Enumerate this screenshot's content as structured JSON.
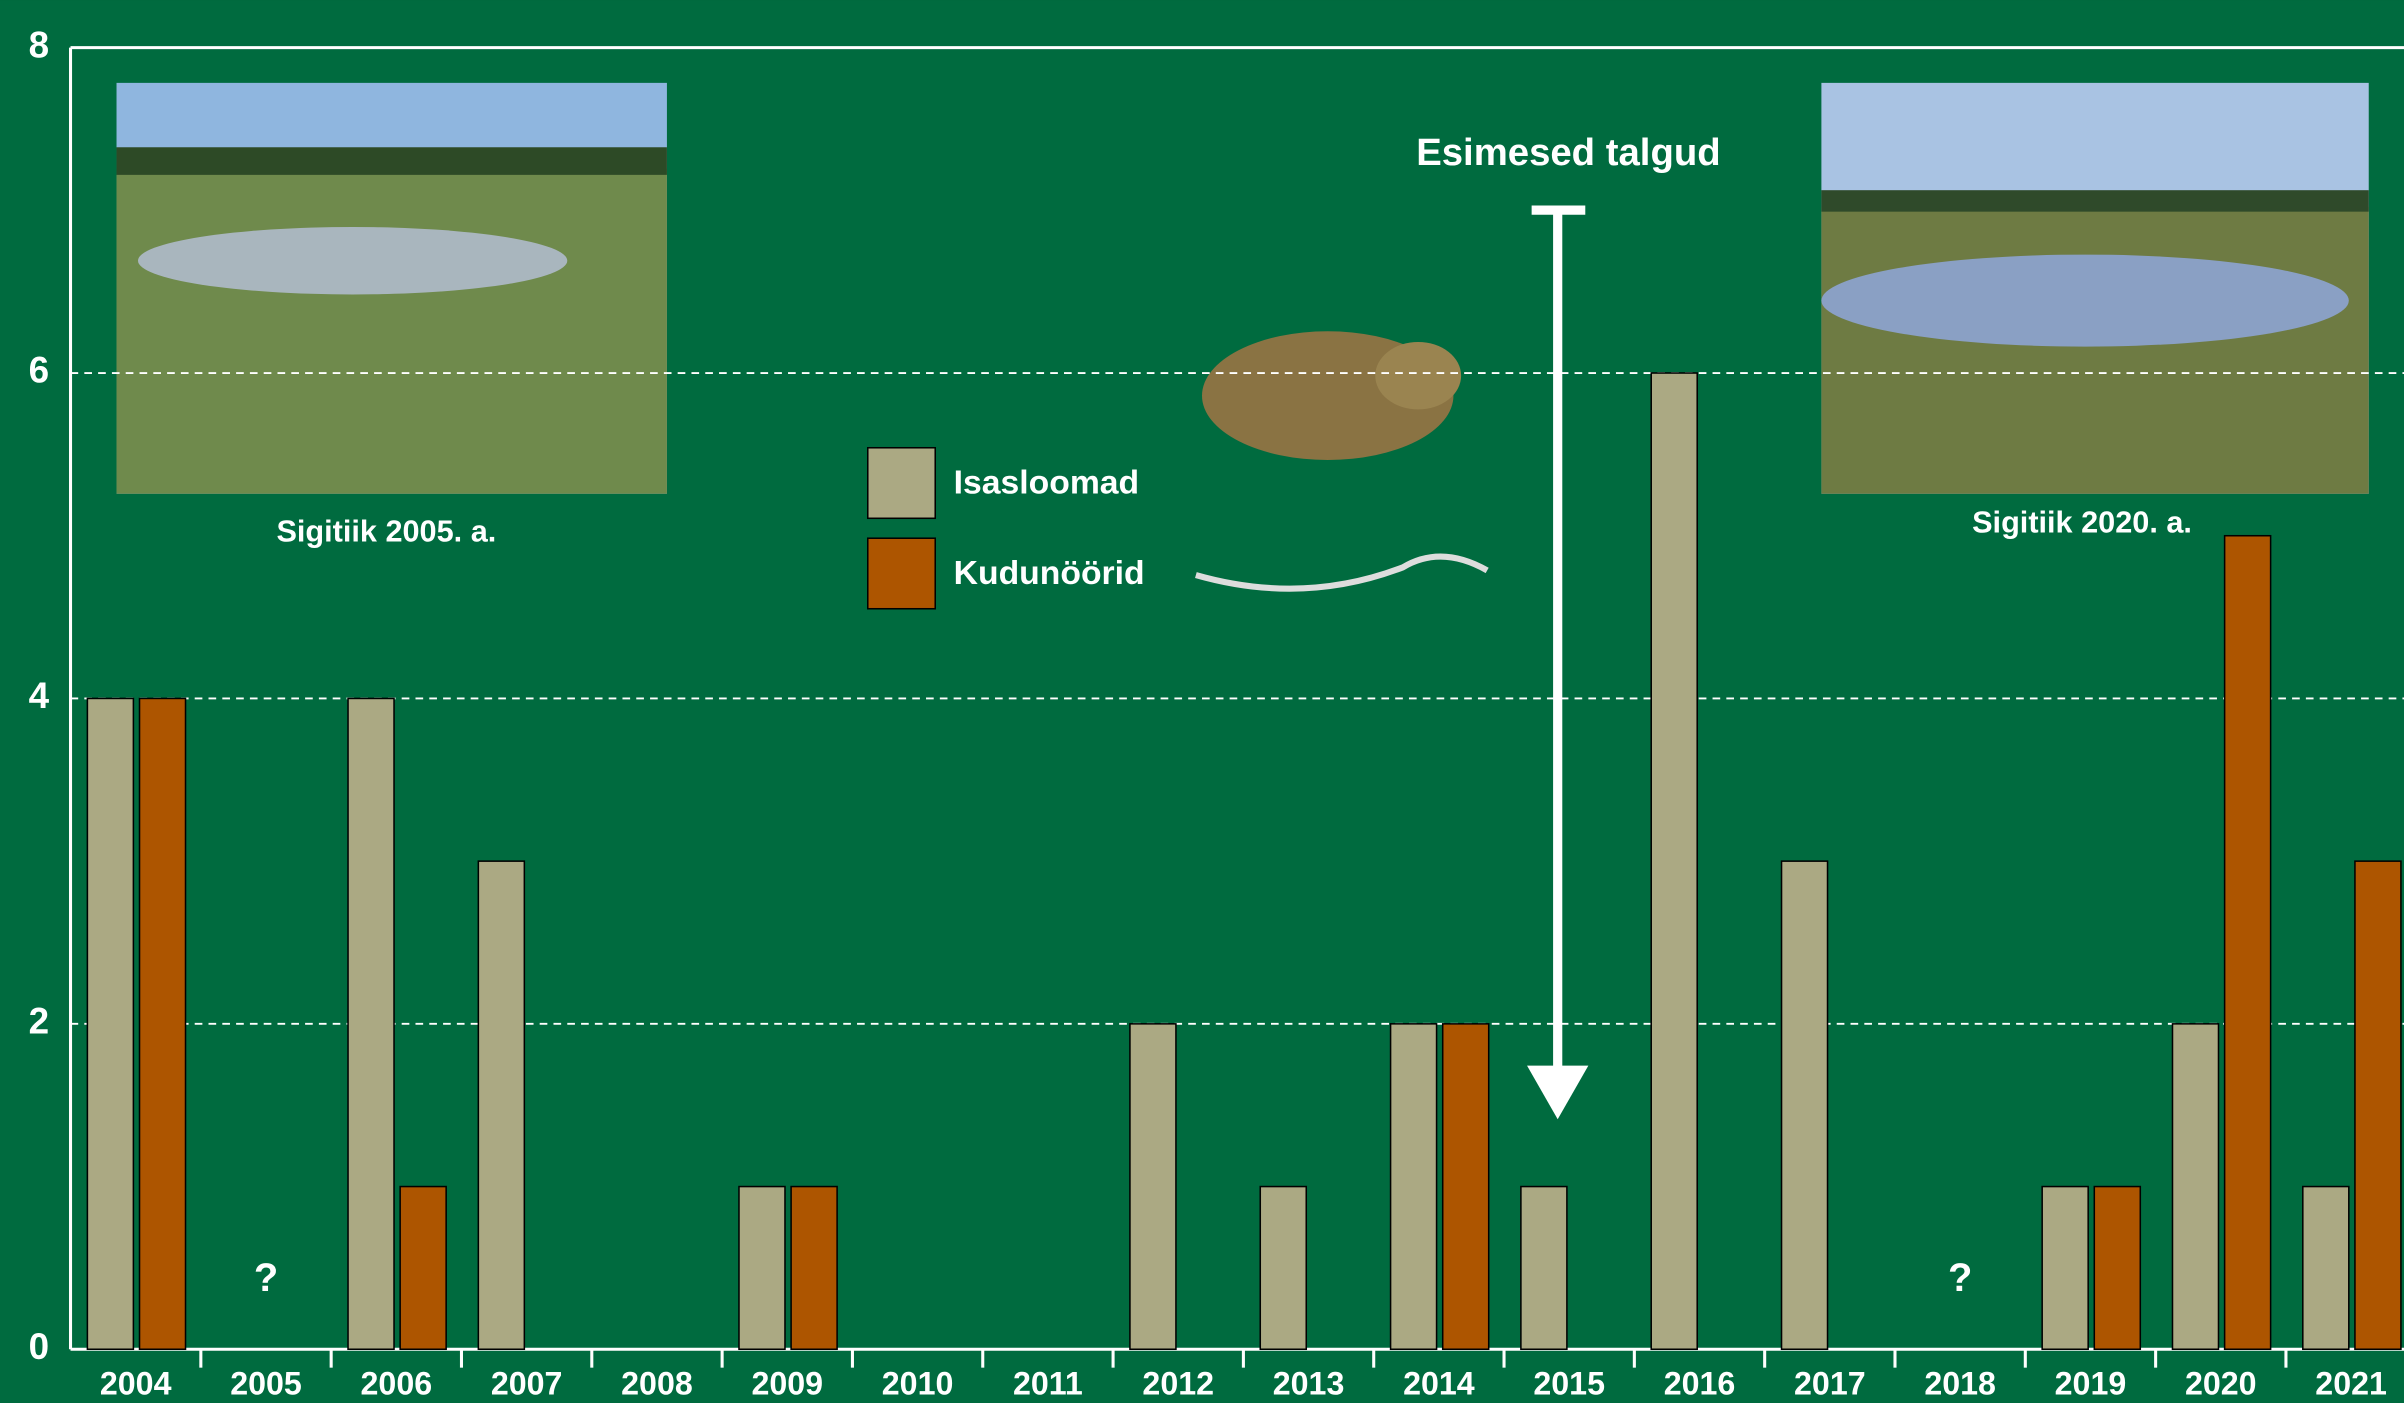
{
  "chart_data": {
    "type": "bar",
    "categories": [
      "2004",
      "2005",
      "2006",
      "2007",
      "2008",
      "2009",
      "2010",
      "2011",
      "2012",
      "2013",
      "2014",
      "2015",
      "2016",
      "2017",
      "2018",
      "2019",
      "2020",
      "2021"
    ],
    "series": [
      {
        "name": "Isasloomad",
        "color": "#aba983",
        "values": [
          4,
          null,
          4,
          3,
          0,
          1,
          0,
          0,
          2,
          1,
          2,
          1,
          6,
          3,
          null,
          1,
          2,
          1
        ]
      },
      {
        "name": "Kudunöörid",
        "color": "#ad5500",
        "values": [
          4,
          null,
          1,
          0,
          0,
          1,
          0,
          0,
          0,
          0,
          2,
          0,
          0,
          0,
          null,
          1,
          5,
          3
        ]
      }
    ],
    "ylim": [
      0,
      8
    ],
    "yticks": [
      0,
      2,
      4,
      6,
      8
    ],
    "grid": true,
    "annotations": [
      {
        "text": "?",
        "category": "2005"
      },
      {
        "text": "?",
        "category": "2018"
      }
    ],
    "arrow_annotation": {
      "text": "Esimesed talgud",
      "category": "2015"
    },
    "photo_captions": [
      "Sigitiik 2005. a.",
      "Sigitiik 2020. a."
    ]
  }
}
